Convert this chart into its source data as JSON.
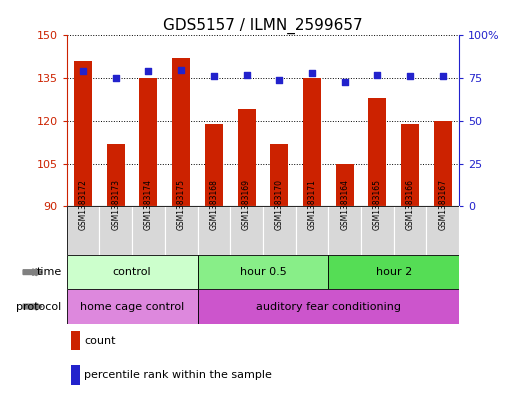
{
  "title": "GDS5157 / ILMN_2599657",
  "samples": [
    "GSM1383172",
    "GSM1383173",
    "GSM1383174",
    "GSM1383175",
    "GSM1383168",
    "GSM1383169",
    "GSM1383170",
    "GSM1383171",
    "GSM1383164",
    "GSM1383165",
    "GSM1383166",
    "GSM1383167"
  ],
  "bar_values": [
    141,
    112,
    135,
    142,
    119,
    124,
    112,
    135,
    105,
    128,
    119,
    120
  ],
  "dot_values": [
    79,
    75,
    79,
    80,
    76,
    77,
    74,
    78,
    73,
    77,
    76,
    76
  ],
  "bar_color": "#CC2200",
  "dot_color": "#2222CC",
  "ylim_left": [
    90,
    150
  ],
  "ylim_right": [
    0,
    100
  ],
  "yticks_left": [
    90,
    105,
    120,
    135,
    150
  ],
  "yticks_right": [
    0,
    25,
    50,
    75,
    100
  ],
  "time_groups": [
    {
      "label": "control",
      "start": 0,
      "end": 4,
      "color": "#ccffcc"
    },
    {
      "label": "hour 0.5",
      "start": 4,
      "end": 8,
      "color": "#88ee88"
    },
    {
      "label": "hour 2",
      "start": 8,
      "end": 12,
      "color": "#55dd55"
    }
  ],
  "protocol_groups": [
    {
      "label": "home cage control",
      "start": 0,
      "end": 4,
      "color": "#dd88dd"
    },
    {
      "label": "auditory fear conditioning",
      "start": 4,
      "end": 12,
      "color": "#cc55cc"
    }
  ],
  "legend_count_label": "count",
  "legend_percentile_label": "percentile rank within the sample",
  "background_color": "#ffffff",
  "title_fontsize": 11,
  "bar_width": 0.55
}
